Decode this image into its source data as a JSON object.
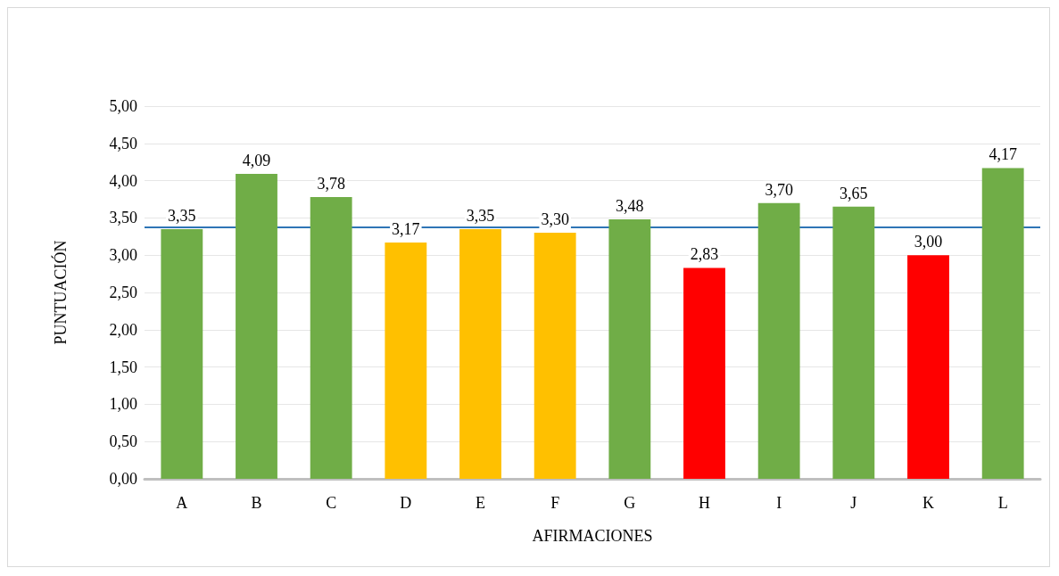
{
  "chart_data": {
    "type": "bar",
    "xlabel": "AFIRMACIONES",
    "ylabel": "PUNTUACIÓN",
    "categories": [
      "A",
      "B",
      "C",
      "D",
      "E",
      "F",
      "G",
      "H",
      "I",
      "J",
      "K",
      "L"
    ],
    "values": [
      3.35,
      4.09,
      3.78,
      3.17,
      3.35,
      3.3,
      3.48,
      2.83,
      3.7,
      3.65,
      3.0,
      4.17
    ],
    "colors": [
      "#70ad47",
      "#70ad47",
      "#70ad47",
      "#ffc000",
      "#ffc000",
      "#ffc000",
      "#70ad47",
      "#ff0000",
      "#70ad47",
      "#70ad47",
      "#ff0000",
      "#70ad47"
    ],
    "value_labels": [
      "3,35",
      "4,09",
      "3,78",
      "3,17",
      "3,35",
      "3,30",
      "3,48",
      "2,83",
      "3,70",
      "3,65",
      "3,00",
      "4,17"
    ],
    "ylim": [
      0,
      5
    ],
    "yticks": [
      {
        "value": 0,
        "label": "0,00"
      },
      {
        "value": 0.5,
        "label": "0,50"
      },
      {
        "value": 1,
        "label": "1,00"
      },
      {
        "value": 1.5,
        "label": "1,50"
      },
      {
        "value": 2,
        "label": "2,00"
      },
      {
        "value": 2.5,
        "label": "2,50"
      },
      {
        "value": 3,
        "label": "3,00"
      },
      {
        "value": 3.5,
        "label": "3,50"
      },
      {
        "value": 4,
        "label": "4,00"
      },
      {
        "value": 4.5,
        "label": "4,50"
      },
      {
        "value": 5,
        "label": "5,00"
      }
    ],
    "ref_lines": [
      {
        "axis": "y",
        "value": 3.38,
        "color": "#2e75b6"
      }
    ],
    "grid": "y"
  }
}
